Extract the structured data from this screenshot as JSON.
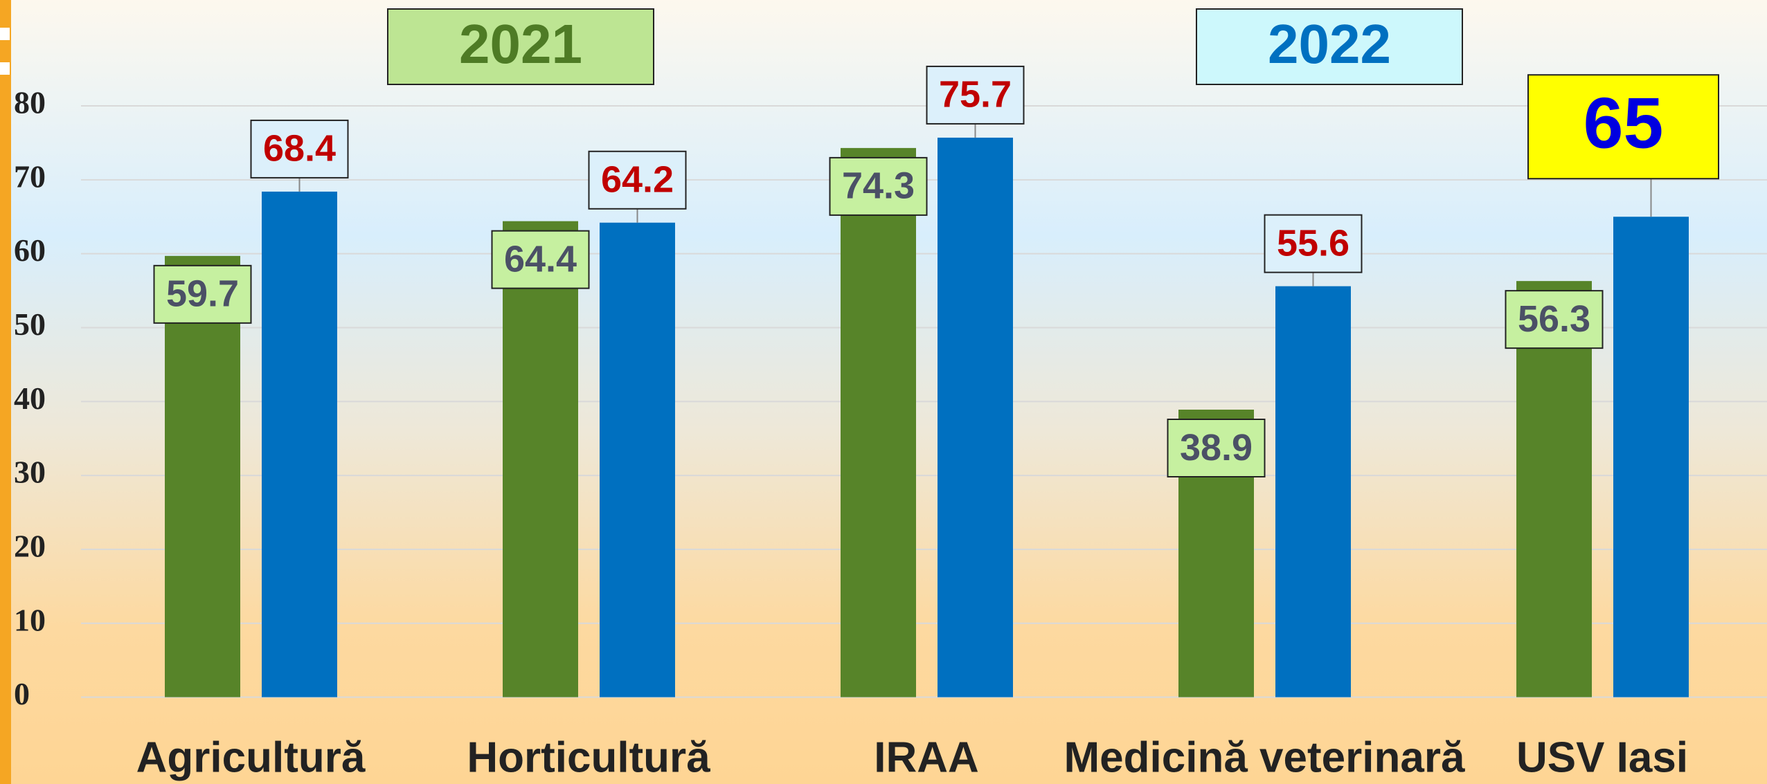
{
  "chart_data": {
    "type": "bar",
    "categories": [
      "Agricultură",
      "Horticultură",
      "IRAA",
      "Medicină veterinară",
      "USV Iasi"
    ],
    "series": [
      {
        "name": "2021",
        "color": "#578429",
        "label_fill": "#c6f0a0",
        "label_color": "#4b5066",
        "legend_fill": "#bde593",
        "legend_color": "#4e7b25",
        "values": [
          59.7,
          64.4,
          74.3,
          38.9,
          56.3
        ]
      },
      {
        "name": "2022",
        "color": "#0070c0",
        "label_fill": "#dcf0fb",
        "label_color": "#c00000",
        "legend_fill": "#cdf8fc",
        "legend_color": "#0070c0",
        "values": [
          68.4,
          64.2,
          75.7,
          55.6,
          65
        ]
      }
    ],
    "highlight": {
      "series": 1,
      "index": 4,
      "fill": "#ffff00",
      "color": "#0000e0"
    },
    "ylim": [
      0,
      80
    ],
    "yticks": [
      0,
      10,
      20,
      30,
      40,
      50,
      60,
      70,
      80
    ],
    "grid": true
  }
}
